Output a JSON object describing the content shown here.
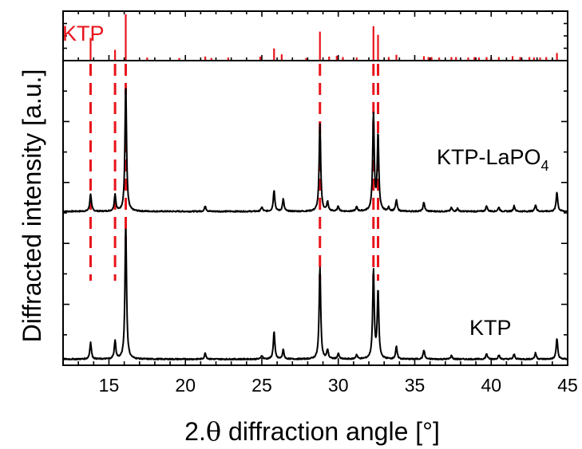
{
  "chart_data": {
    "type": "line",
    "title": "",
    "xlabel_prefix": "2.",
    "xlabel_symbol": "θ",
    "xlabel_suffix": " diffraction angle [°]",
    "ylabel": "Diffracted intensity [a.u.]",
    "xlim": [
      12,
      45
    ],
    "ylim": [
      0,
      1
    ],
    "x_ticks": [
      15,
      20,
      25,
      30,
      35,
      40,
      45
    ],
    "x_tick_labels": [
      "15",
      "20",
      "25",
      "30",
      "35",
      "40",
      "45"
    ],
    "grid": false,
    "colors": {
      "reference": "#e8141b",
      "pattern": "#000000"
    },
    "reference": {
      "name": "KTP",
      "panel_ylim": [
        0,
        1
      ],
      "sticks": [
        {
          "x": 13.8,
          "h": 0.48
        },
        {
          "x": 15.4,
          "h": 0.22
        },
        {
          "x": 16.1,
          "h": 1.0
        },
        {
          "x": 17.5,
          "h": 0.05
        },
        {
          "x": 19.6,
          "h": 0.04
        },
        {
          "x": 21.3,
          "h": 0.07
        },
        {
          "x": 21.7,
          "h": 0.04
        },
        {
          "x": 22.8,
          "h": 0.05
        },
        {
          "x": 24.9,
          "h": 0.07
        },
        {
          "x": 25.8,
          "h": 0.25
        },
        {
          "x": 26.3,
          "h": 0.12
        },
        {
          "x": 27.9,
          "h": 0.04
        },
        {
          "x": 28.8,
          "h": 0.62
        },
        {
          "x": 29.4,
          "h": 0.07
        },
        {
          "x": 29.9,
          "h": 0.09
        },
        {
          "x": 30.3,
          "h": 0.06
        },
        {
          "x": 31.2,
          "h": 0.05
        },
        {
          "x": 32.3,
          "h": 0.74
        },
        {
          "x": 32.6,
          "h": 0.55
        },
        {
          "x": 33.3,
          "h": 0.06
        },
        {
          "x": 33.8,
          "h": 0.11
        },
        {
          "x": 35.6,
          "h": 0.08
        },
        {
          "x": 35.9,
          "h": 0.06
        },
        {
          "x": 36.1,
          "h": 0.06
        },
        {
          "x": 36.6,
          "h": 0.05
        },
        {
          "x": 37.4,
          "h": 0.06
        },
        {
          "x": 37.7,
          "h": 0.06
        },
        {
          "x": 38.5,
          "h": 0.05
        },
        {
          "x": 38.9,
          "h": 0.06
        },
        {
          "x": 39.2,
          "h": 0.05
        },
        {
          "x": 39.7,
          "h": 0.06
        },
        {
          "x": 40.0,
          "h": 0.05
        },
        {
          "x": 40.5,
          "h": 0.06
        },
        {
          "x": 41.4,
          "h": 0.08
        },
        {
          "x": 41.9,
          "h": 0.06
        },
        {
          "x": 42.5,
          "h": 0.06
        },
        {
          "x": 42.8,
          "h": 0.05
        },
        {
          "x": 43.2,
          "h": 0.05
        },
        {
          "x": 43.6,
          "h": 0.06
        },
        {
          "x": 44.3,
          "h": 0.15
        }
      ]
    },
    "dashed_markers": [
      13.8,
      15.4,
      16.1,
      28.8,
      32.3,
      32.6
    ],
    "series": [
      {
        "name": "KTP-LaPO",
        "name_subscript": "4",
        "baseline": 0.505,
        "peaks": [
          {
            "x": 13.8,
            "h": 0.058
          },
          {
            "x": 15.4,
            "h": 0.055
          },
          {
            "x": 16.1,
            "h": 0.42
          },
          {
            "x": 21.3,
            "h": 0.018
          },
          {
            "x": 25.0,
            "h": 0.014
          },
          {
            "x": 25.8,
            "h": 0.07
          },
          {
            "x": 26.4,
            "h": 0.04
          },
          {
            "x": 28.8,
            "h": 0.29
          },
          {
            "x": 29.3,
            "h": 0.03
          },
          {
            "x": 30.0,
            "h": 0.017
          },
          {
            "x": 31.2,
            "h": 0.014
          },
          {
            "x": 32.3,
            "h": 0.318
          },
          {
            "x": 32.6,
            "h": 0.25
          },
          {
            "x": 33.3,
            "h": 0.012
          },
          {
            "x": 33.8,
            "h": 0.037
          },
          {
            "x": 35.6,
            "h": 0.03
          },
          {
            "x": 37.4,
            "h": 0.012
          },
          {
            "x": 37.8,
            "h": 0.01
          },
          {
            "x": 39.7,
            "h": 0.018
          },
          {
            "x": 40.5,
            "h": 0.014
          },
          {
            "x": 41.5,
            "h": 0.018
          },
          {
            "x": 42.9,
            "h": 0.022
          },
          {
            "x": 44.3,
            "h": 0.064
          }
        ]
      },
      {
        "name": "KTP",
        "baseline": 0.02,
        "peaks": [
          {
            "x": 13.8,
            "h": 0.055
          },
          {
            "x": 15.4,
            "h": 0.06
          },
          {
            "x": 16.1,
            "h": 0.445
          },
          {
            "x": 21.3,
            "h": 0.02
          },
          {
            "x": 25.0,
            "h": 0.012
          },
          {
            "x": 25.8,
            "h": 0.09
          },
          {
            "x": 26.4,
            "h": 0.03
          },
          {
            "x": 28.8,
            "h": 0.304
          },
          {
            "x": 29.3,
            "h": 0.03
          },
          {
            "x": 30.0,
            "h": 0.018
          },
          {
            "x": 31.2,
            "h": 0.014
          },
          {
            "x": 32.3,
            "h": 0.29
          },
          {
            "x": 32.6,
            "h": 0.222
          },
          {
            "x": 33.8,
            "h": 0.04
          },
          {
            "x": 35.6,
            "h": 0.03
          },
          {
            "x": 37.4,
            "h": 0.012
          },
          {
            "x": 39.7,
            "h": 0.018
          },
          {
            "x": 40.5,
            "h": 0.014
          },
          {
            "x": 41.5,
            "h": 0.016
          },
          {
            "x": 42.9,
            "h": 0.02
          },
          {
            "x": 44.3,
            "h": 0.068
          }
        ]
      }
    ]
  }
}
